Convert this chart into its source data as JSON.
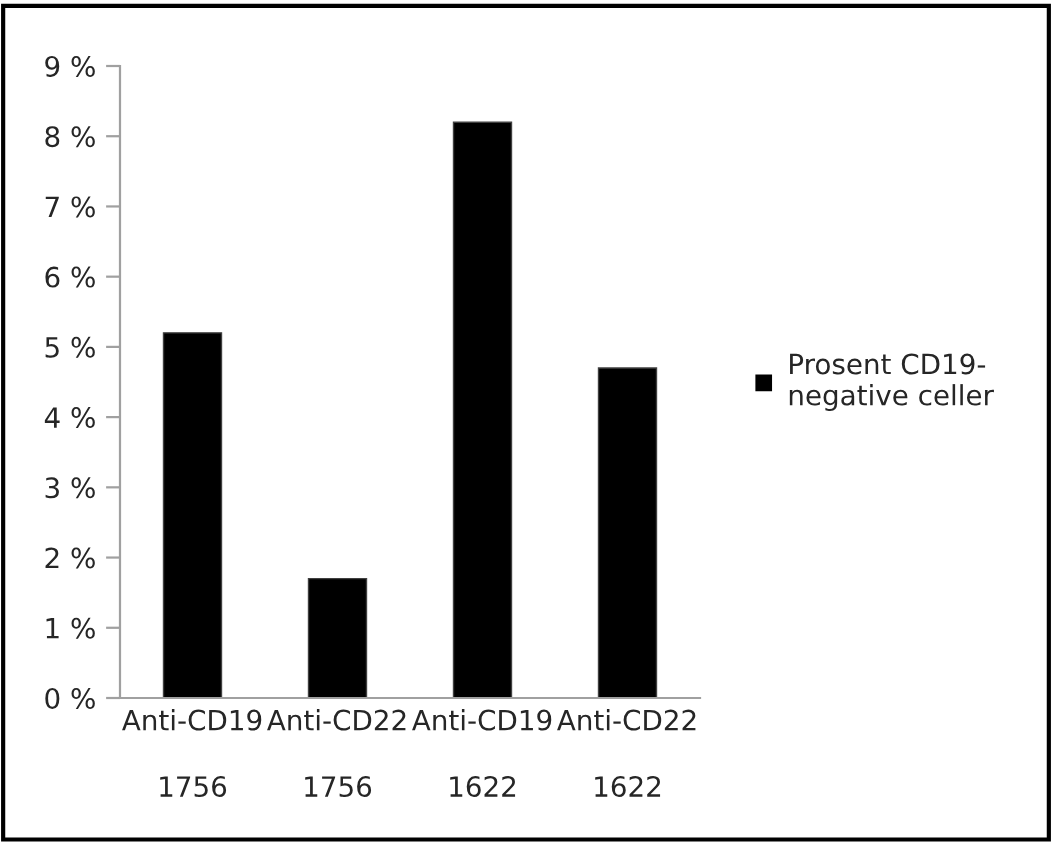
{
  "chart_data": {
    "type": "bar",
    "categories": [
      "Anti-CD19\n\n1756",
      "Anti-CD22\n\n1756",
      "Anti-CD19\n\n1622",
      "Anti-CD22\n\n1622"
    ],
    "series": [
      {
        "name": "Prosent CD19-\nnegative celler",
        "color": "#000000",
        "values": [
          5.2,
          1.7,
          8.2,
          4.7
        ]
      }
    ],
    "ylim": [
      0,
      9
    ],
    "yticks": [
      {
        "value": 0,
        "label": "0 %"
      },
      {
        "value": 1,
        "label": "1 %"
      },
      {
        "value": 2,
        "label": "2 %"
      },
      {
        "value": 3,
        "label": "3 %"
      },
      {
        "value": 4,
        "label": "4 %"
      },
      {
        "value": 5,
        "label": "5 %"
      },
      {
        "value": 6,
        "label": "6 %"
      },
      {
        "value": 7,
        "label": "7 %"
      },
      {
        "value": 8,
        "label": "8 %"
      },
      {
        "value": 9,
        "label": "9 %"
      }
    ],
    "grid": false,
    "legend": "right"
  }
}
